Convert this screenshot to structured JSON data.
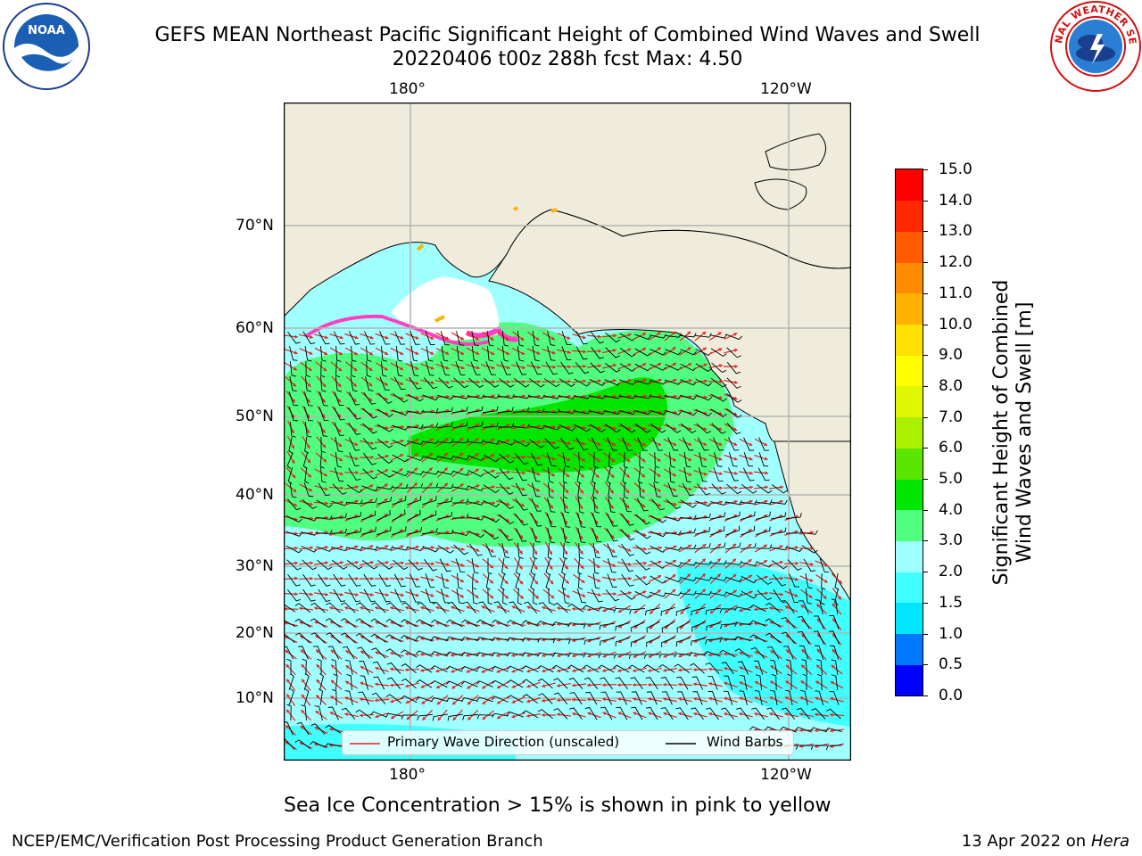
{
  "title": {
    "line1": "GEFS MEAN Northeast Pacific Significant Height of Combined Wind Waves and Swell",
    "line2": "20220406 t00z 288h fcst   Max: 4.50"
  },
  "map": {
    "lon_labels_top": [
      "180°",
      "120°W"
    ],
    "lon_labels_bottom": [
      "180°",
      "120°W"
    ],
    "lat_labels": [
      "70°N",
      "60°N",
      "50°N",
      "40°N",
      "30°N",
      "20°N",
      "10°N"
    ],
    "legend": {
      "wave_direction": "Primary Wave Direction (unscaled)",
      "wind_barbs": "Wind Barbs"
    }
  },
  "colorbar": {
    "title_line1": "Significant Height of Combined",
    "title_line2": "Wind Waves and Swell [m]",
    "ticks": [
      "15.0",
      "14.0",
      "13.0",
      "12.0",
      "11.0",
      "10.0",
      "9.0",
      "8.0",
      "7.0",
      "6.0",
      "5.0",
      "4.0",
      "3.0",
      "2.0",
      "1.5",
      "1.0",
      "0.5",
      "0.0"
    ],
    "colors": [
      "#0000ff",
      "#0078ff",
      "#00e6ff",
      "#40ffff",
      "#a0ffff",
      "#50ff80",
      "#00e600",
      "#5ae600",
      "#aaf000",
      "#ddf800",
      "#ffff00",
      "#ffe000",
      "#ffb000",
      "#ff8c00",
      "#ff5a00",
      "#ff2800",
      "#ff0000"
    ]
  },
  "colors": {
    "land": "#efecdc",
    "wave_arrow": "#e8201c",
    "wind_barb": "#000000",
    "grid": "#b4b4b4"
  },
  "note": "Sea Ice Concentration > 15% is shown in pink to yellow",
  "footer": {
    "left": "NCEP/EMC/Verification Post Processing Product Generation Branch",
    "right_date": "13 Apr 2022 on ",
    "right_host": "Hera"
  },
  "logos": {
    "noaa_text": "NOAA",
    "nws_text": "NATIONAL WEATHER SERVICE"
  }
}
